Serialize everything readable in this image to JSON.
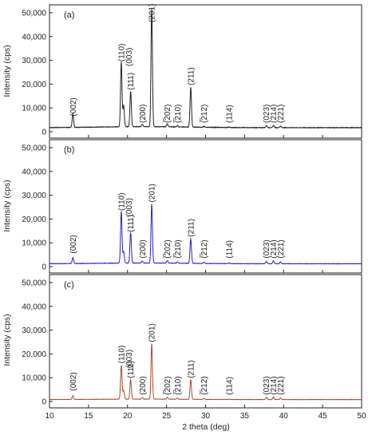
{
  "chart_data": {
    "type": "line",
    "xlabel": "2 theta (deg)",
    "ylabel": "Intensity (cps)",
    "xlim": [
      10,
      50
    ],
    "ylim": [
      0,
      52000
    ],
    "x_ticks": [
      10,
      15,
      20,
      25,
      30,
      35,
      40,
      45,
      50
    ],
    "x_tick_labels": [
      "10",
      "15",
      "20",
      "25",
      "30",
      "35",
      "40",
      "45",
      "50"
    ],
    "y_ticks": [
      0,
      10000,
      20000,
      30000,
      40000,
      50000
    ],
    "y_tick_labels": [
      "0",
      "10,000",
      "20,000",
      "30,000",
      "40,000",
      "50,000"
    ],
    "grid": false,
    "panels": [
      {
        "label": "(a)",
        "color": "#222222",
        "baseline": 1700,
        "peaks": [
          {
            "x": 13.0,
            "y": 7500,
            "label": "(002)",
            "label_y": 6500
          },
          {
            "x": 19.5,
            "y": 10500,
            "label": "",
            "label_y": 0
          },
          {
            "x": 19.2,
            "y": 29000,
            "label": "(110)",
            "label_y": 29500
          },
          {
            "x": 20.4,
            "y": 16500,
            "label": "(003)",
            "label_y": 27500
          },
          {
            "x": 20.4,
            "y": 16500,
            "label": "(111)",
            "label_y": 17500
          },
          {
            "x": 21.9,
            "y": 2600,
            "label": "(200)",
            "label_y": 3700
          },
          {
            "x": 23.1,
            "y": 51500,
            "label": "(201)",
            "label_y": 46000
          },
          {
            "x": 25.1,
            "y": 2900,
            "label": "(̅202)",
            "label_y": 3700
          },
          {
            "x": 26.4,
            "y": 2200,
            "label": "(̅210)",
            "label_y": 3700
          },
          {
            "x": 28.1,
            "y": 18500,
            "label": "(211)",
            "label_y": 19500
          },
          {
            "x": 29.8,
            "y": 2100,
            "label": "(̅212)",
            "label_y": 3700
          },
          {
            "x": 33.0,
            "y": 1900,
            "label": "(114)",
            "label_y": 3700
          },
          {
            "x": 37.8,
            "y": 2500,
            "label": "(023)",
            "label_y": 3700
          },
          {
            "x": 38.7,
            "y": 2600,
            "label": "(214)",
            "label_y": 3700
          },
          {
            "x": 39.6,
            "y": 2300,
            "label": "(221)",
            "label_y": 3700
          }
        ]
      },
      {
        "label": "(b)",
        "color": "#2222cc",
        "baseline": 1200,
        "peaks": [
          {
            "x": 13.0,
            "y": 3700,
            "label": "(002)",
            "label_y": 5500
          },
          {
            "x": 19.5,
            "y": 6000,
            "label": "",
            "label_y": 0
          },
          {
            "x": 19.2,
            "y": 23000,
            "label": "(110)",
            "label_y": 23500
          },
          {
            "x": 20.4,
            "y": 14000,
            "label": "(003)",
            "label_y": 21000
          },
          {
            "x": 20.4,
            "y": 14000,
            "label": "(111)",
            "label_y": 14500
          },
          {
            "x": 21.9,
            "y": 2000,
            "label": "(200)",
            "label_y": 3500
          },
          {
            "x": 23.1,
            "y": 26000,
            "label": "(201)",
            "label_y": 27000
          },
          {
            "x": 25.1,
            "y": 2200,
            "label": "(̅202)",
            "label_y": 3500
          },
          {
            "x": 26.4,
            "y": 1700,
            "label": "(̅210)",
            "label_y": 3500
          },
          {
            "x": 28.1,
            "y": 11500,
            "label": "(211)",
            "label_y": 12500
          },
          {
            "x": 29.8,
            "y": 1700,
            "label": "(̅212)",
            "label_y": 3500
          },
          {
            "x": 33.0,
            "y": 1500,
            "label": "(114)",
            "label_y": 3500
          },
          {
            "x": 37.8,
            "y": 2200,
            "label": "(023)",
            "label_y": 3500
          },
          {
            "x": 38.7,
            "y": 2400,
            "label": "(214)",
            "label_y": 3500
          },
          {
            "x": 39.6,
            "y": 2000,
            "label": "(221)",
            "label_y": 3500
          }
        ]
      },
      {
        "label": "(c)",
        "color": "#a84a2c",
        "baseline": 800,
        "peaks": [
          {
            "x": 13.0,
            "y": 2400,
            "label": "(002)",
            "label_y": 4500
          },
          {
            "x": 19.5,
            "y": 4500,
            "label": "",
            "label_y": 0
          },
          {
            "x": 19.2,
            "y": 15000,
            "label": "(110)",
            "label_y": 16000
          },
          {
            "x": 20.4,
            "y": 9000,
            "label": "(003)",
            "label_y": 14000
          },
          {
            "x": 20.4,
            "y": 9000,
            "label": "(111)",
            "label_y": 9800
          },
          {
            "x": 21.9,
            "y": 1500,
            "label": "(200)",
            "label_y": 2800
          },
          {
            "x": 23.1,
            "y": 24000,
            "label": "(201)",
            "label_y": 25000
          },
          {
            "x": 25.1,
            "y": 1600,
            "label": "(̅202)",
            "label_y": 2800
          },
          {
            "x": 26.4,
            "y": 1300,
            "label": "(̅210)",
            "label_y": 2800
          },
          {
            "x": 28.1,
            "y": 9000,
            "label": "(211)",
            "label_y": 9800
          },
          {
            "x": 29.8,
            "y": 1300,
            "label": "(̅212)",
            "label_y": 2800
          },
          {
            "x": 33.0,
            "y": 1000,
            "label": "(114)",
            "label_y": 2800
          },
          {
            "x": 37.8,
            "y": 1800,
            "label": "(023)",
            "label_y": 2800
          },
          {
            "x": 38.7,
            "y": 2000,
            "label": "(214)",
            "label_y": 2800
          },
          {
            "x": 39.6,
            "y": 1500,
            "label": "(221)",
            "label_y": 2800
          }
        ]
      }
    ]
  }
}
